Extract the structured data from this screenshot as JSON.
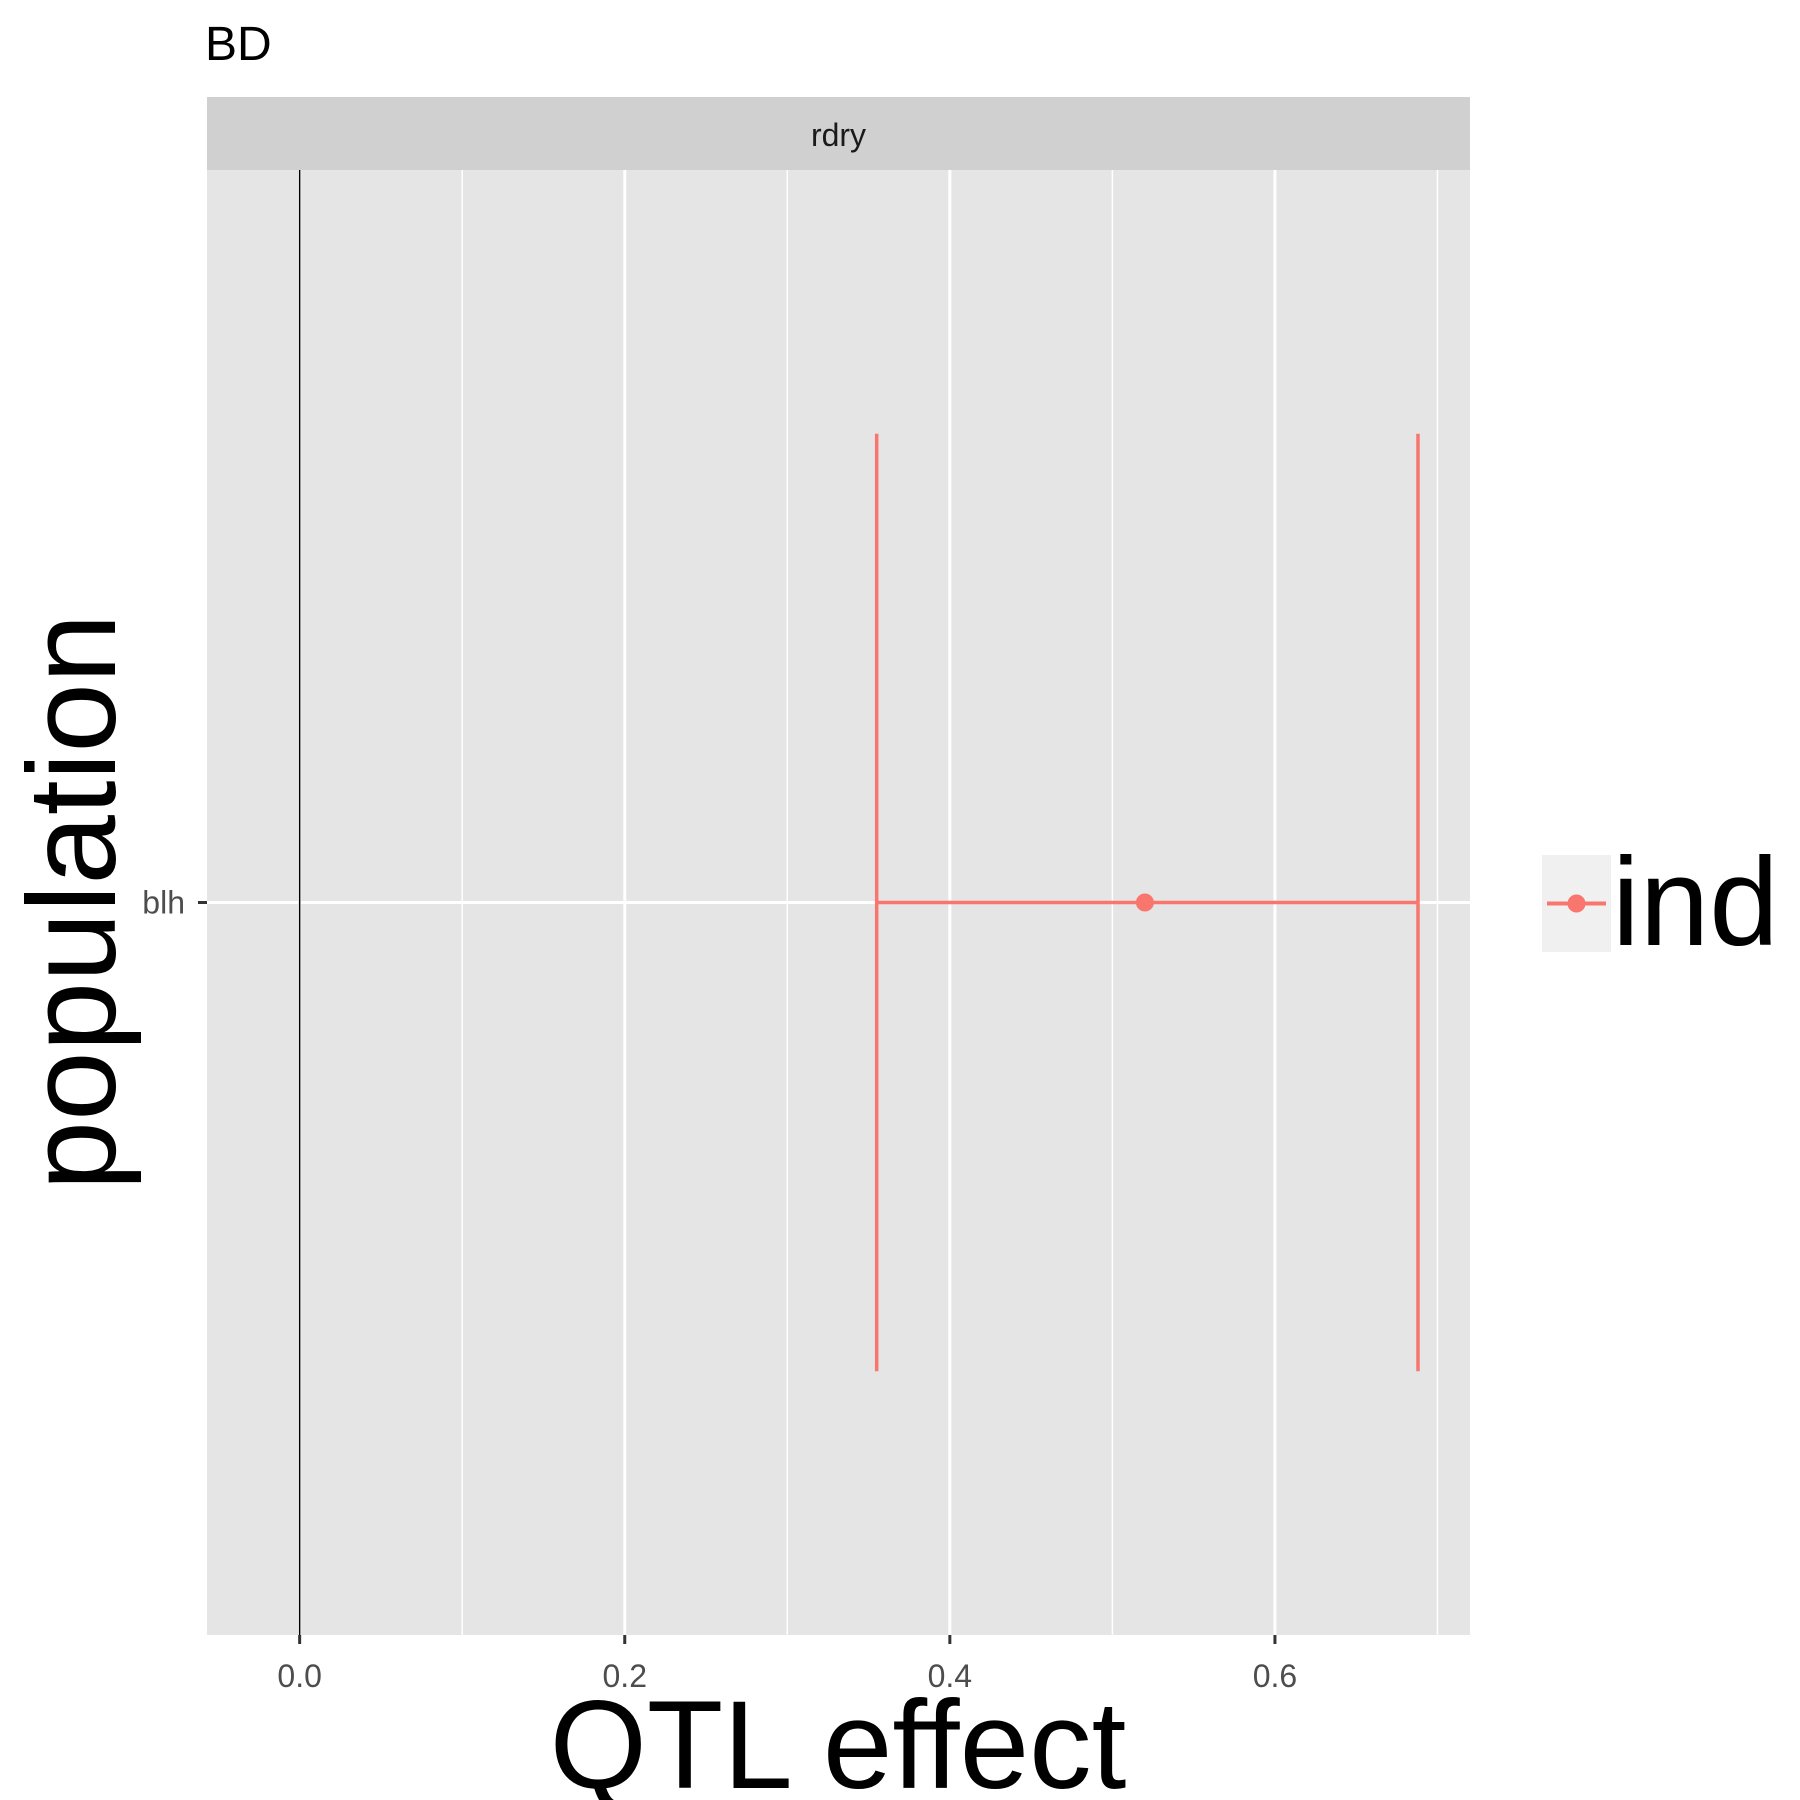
{
  "chart_data": {
    "type": "errorbar",
    "title": "BD",
    "facet_label": "rdry",
    "xlabel": "QTL effect",
    "ylabel": "population",
    "xlim": [
      -0.057,
      0.72
    ],
    "x_ticks": [
      {
        "value": 0.0,
        "label": "0.0"
      },
      {
        "value": 0.2,
        "label": "0.2"
      },
      {
        "value": 0.4,
        "label": "0.4"
      },
      {
        "value": 0.6,
        "label": "0.6"
      }
    ],
    "x_minor_gridlines": [
      0.1,
      0.3,
      0.5,
      0.7
    ],
    "categories": [
      "blh"
    ],
    "reference_line_x": 0.0,
    "grid": true,
    "legend_position": "right",
    "series": [
      {
        "name": "ind",
        "color": "#F8766D",
        "points": [
          {
            "category": "blh",
            "estimate": 0.52,
            "lower": 0.355,
            "upper": 0.688
          }
        ]
      }
    ],
    "colors": {
      "panel_bg": "#e5e5e5",
      "strip_bg": "#d0d0d0",
      "grid": "#ffffff",
      "reference_line": "#000000",
      "legend_key_bg": "#f0f0f0"
    }
  }
}
